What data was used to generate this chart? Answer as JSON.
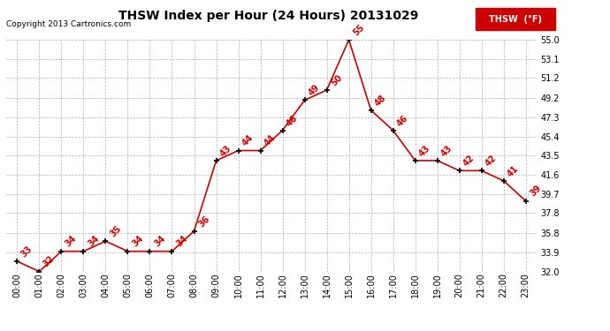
{
  "title": "THSW Index per Hour (24 Hours) 20131029",
  "copyright": "Copyright 2013 Cartronics.com",
  "legend_label": "THSW  (°F)",
  "hours": [
    0,
    1,
    2,
    3,
    4,
    5,
    6,
    7,
    8,
    9,
    10,
    11,
    12,
    13,
    14,
    15,
    16,
    17,
    18,
    19,
    20,
    21,
    22,
    23
  ],
  "x_labels": [
    "00:00",
    "01:00",
    "02:00",
    "03:00",
    "04:00",
    "05:00",
    "06:00",
    "07:00",
    "08:00",
    "09:00",
    "10:00",
    "11:00",
    "12:00",
    "13:00",
    "14:00",
    "15:00",
    "16:00",
    "17:00",
    "18:00",
    "19:00",
    "20:00",
    "21:00",
    "22:00",
    "23:00"
  ],
  "values": [
    33,
    32,
    34,
    34,
    35,
    34,
    34,
    34,
    36,
    43,
    44,
    44,
    46,
    49,
    50,
    55,
    48,
    46,
    43,
    43,
    42,
    42,
    41,
    39
  ],
  "ylim_min": 32.0,
  "ylim_max": 55.0,
  "y_ticks": [
    32.0,
    33.9,
    35.8,
    37.8,
    39.7,
    41.6,
    43.5,
    45.4,
    47.3,
    49.2,
    51.2,
    53.1,
    55.0
  ],
  "line_color": "#cc0000",
  "marker_color": "#000000",
  "bg_color": "#ffffff",
  "grid_color": "#b0b0b0",
  "label_color": "#cc0000",
  "title_color": "#000000",
  "copyright_color": "#000000",
  "legend_bg": "#cc0000",
  "legend_text_color": "#ffffff"
}
